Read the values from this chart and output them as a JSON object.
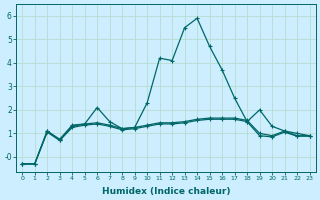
{
  "xlabel": "Humidex (Indice chaleur)",
  "background_color": "#cceeff",
  "grid_color": "#b8ddd0",
  "line_color": "#006666",
  "xlim": [
    -0.5,
    23.5
  ],
  "ylim": [
    -0.65,
    6.5
  ],
  "yticks": [
    0,
    1,
    2,
    3,
    4,
    5,
    6
  ],
  "ytick_labels": [
    "-0",
    "1",
    "2",
    "3",
    "4",
    "5",
    "6"
  ],
  "xticks": [
    0,
    1,
    2,
    3,
    4,
    5,
    6,
    7,
    8,
    9,
    10,
    11,
    12,
    13,
    14,
    15,
    16,
    17,
    18,
    19,
    20,
    21,
    22,
    23
  ],
  "series": [
    [
      0,
      1,
      2,
      3,
      4,
      5,
      6,
      7,
      8,
      9,
      10,
      11,
      12,
      13,
      14,
      15,
      16,
      17,
      18,
      19,
      20,
      21,
      22,
      23
    ],
    [
      -0.3,
      -0.3,
      1.1,
      0.7,
      1.3,
      1.4,
      2.1,
      1.5,
      1.2,
      1.25,
      2.3,
      4.2,
      4.1,
      5.5,
      5.9,
      4.7,
      3.7,
      2.5,
      1.5,
      2.0,
      1.3,
      1.1,
      1.0,
      0.9
    ],
    [
      0,
      1,
      2,
      3,
      4,
      5,
      6,
      7,
      8,
      9,
      10,
      11,
      12,
      13,
      14,
      15,
      16,
      17,
      18,
      19,
      20,
      21,
      22,
      23
    ],
    [
      -0.3,
      -0.3,
      1.1,
      0.75,
      1.35,
      1.4,
      1.45,
      1.35,
      1.2,
      1.25,
      1.35,
      1.45,
      1.45,
      1.5,
      1.6,
      1.65,
      1.65,
      1.65,
      1.55,
      1.0,
      0.9,
      1.1,
      0.9,
      0.9
    ],
    [
      0,
      1,
      2,
      3,
      4,
      5,
      6,
      7,
      8,
      9,
      10,
      11,
      12,
      13,
      14,
      15,
      16,
      17,
      18,
      19,
      20,
      21,
      22,
      23
    ],
    [
      -0.3,
      -0.3,
      1.05,
      0.7,
      1.25,
      1.35,
      1.4,
      1.3,
      1.15,
      1.2,
      1.3,
      1.4,
      1.4,
      1.45,
      1.55,
      1.6,
      1.6,
      1.6,
      1.5,
      0.9,
      0.85,
      1.05,
      0.88,
      0.88
    ]
  ]
}
